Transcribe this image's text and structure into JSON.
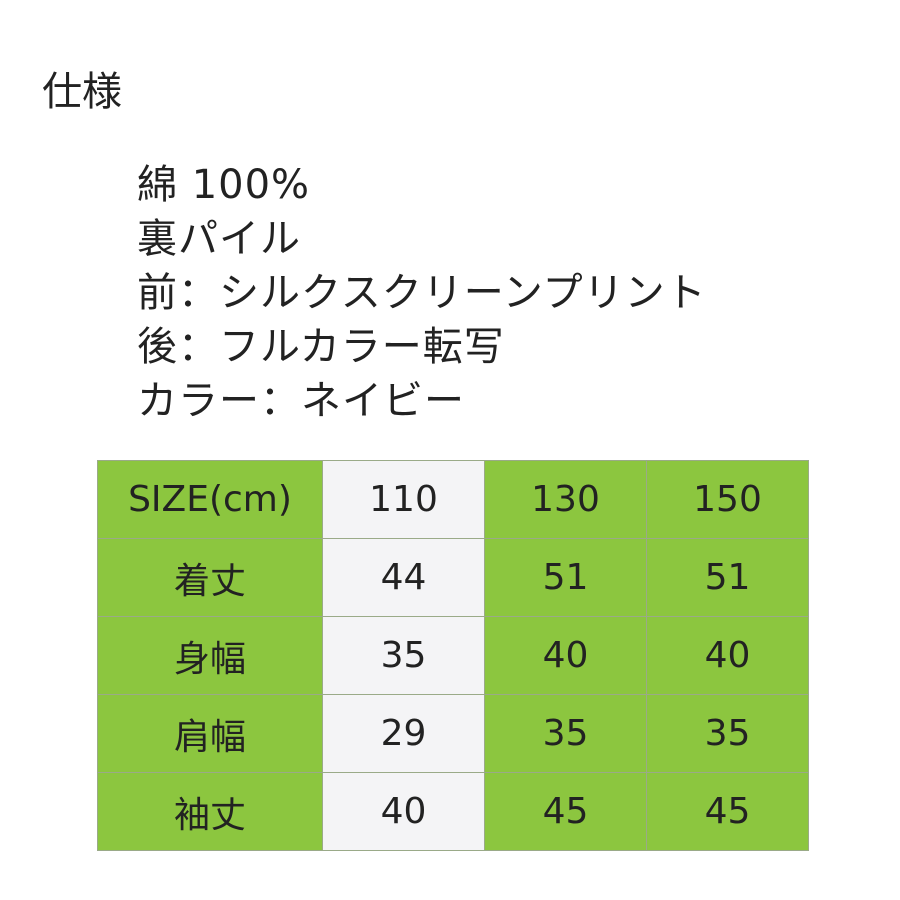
{
  "title": "仕様",
  "specs": [
    "綿 100%",
    "裏パイル",
    "前：シルクスクリーンプリント",
    "後：フルカラー転写",
    "カラー：ネイビー"
  ],
  "size_table": {
    "header": [
      "SIZE(cm)",
      "110",
      "130",
      "150"
    ],
    "rows": [
      [
        "着丈",
        "44",
        "51",
        "51"
      ],
      [
        "身幅",
        "35",
        "40",
        "40"
      ],
      [
        "肩幅",
        "29",
        "35",
        "35"
      ],
      [
        "袖丈",
        "40",
        "45",
        "45"
      ]
    ],
    "colors": {
      "green": "#8cc63f",
      "light": "#f4f4f6"
    }
  }
}
